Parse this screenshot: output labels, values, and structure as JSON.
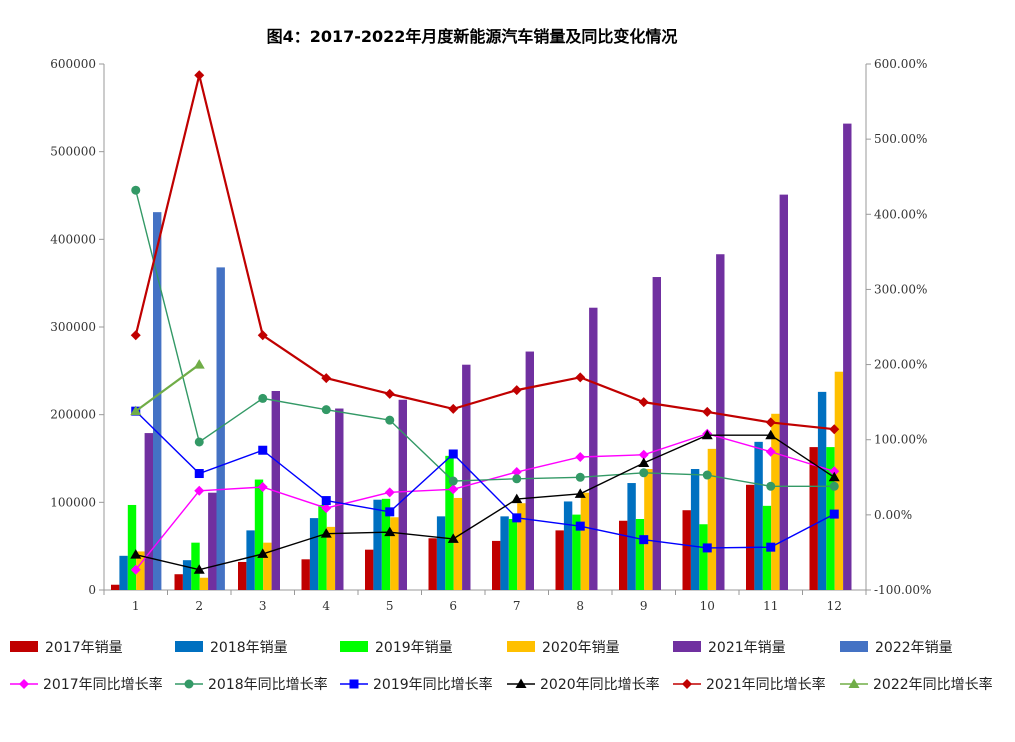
{
  "chart_data": {
    "type": "bar+line",
    "title": "图4：2017-2022年月度新能源汽车销量及同比变化情况",
    "categories": [
      "1",
      "2",
      "3",
      "4",
      "5",
      "6",
      "7",
      "8",
      "9",
      "10",
      "11",
      "12"
    ],
    "y_left": {
      "range": [
        0,
        600000
      ],
      "ticks": [
        "0",
        "100000",
        "200000",
        "300000",
        "400000",
        "500000",
        "600000"
      ]
    },
    "y_right": {
      "range": [
        -100,
        600
      ],
      "ticks": [
        "-100.00%",
        "0.00%",
        "100.00%",
        "200.00%",
        "300.00%",
        "400.00%",
        "500.00%",
        "600.00%"
      ]
    },
    "grid": false,
    "legend_position": "bottom",
    "bar_series": [
      {
        "name": "2017年销量",
        "color": "#C00000",
        "values": [
          6000,
          18000,
          32000,
          35000,
          46000,
          59000,
          56000,
          68000,
          79000,
          91000,
          120000,
          163000
        ]
      },
      {
        "name": "2018年销量",
        "color": "#0070C0",
        "values": [
          39000,
          34000,
          68000,
          82000,
          103000,
          84000,
          84000,
          101000,
          122000,
          138000,
          169000,
          226000
        ]
      },
      {
        "name": "2019年销量",
        "color": "#00FF00",
        "values": [
          97000,
          54000,
          126000,
          97000,
          104000,
          153000,
          81000,
          86000,
          81000,
          75000,
          96000,
          163000
        ]
      },
      {
        "name": "2020年销量",
        "color": "#FFC000",
        "values": [
          44000,
          14000,
          54000,
          72000,
          83000,
          105000,
          99000,
          111000,
          138000,
          161000,
          201000,
          249000
        ]
      },
      {
        "name": "2021年销量",
        "color": "#7030A0",
        "values": [
          179000,
          111000,
          227000,
          207000,
          217000,
          257000,
          272000,
          322000,
          357000,
          383000,
          451000,
          532000
        ]
      },
      {
        "name": "2022年销量",
        "color": "#4472C4",
        "values": [
          431000,
          368000,
          null,
          null,
          null,
          null,
          null,
          null,
          null,
          null,
          null,
          null
        ]
      }
    ],
    "line_series": [
      {
        "name": "2017年同比增长率",
        "color": "#FF00FF",
        "marker": "diamond",
        "values": [
          -73,
          32,
          37,
          9,
          30,
          34,
          57,
          77,
          80,
          108,
          84,
          58
        ]
      },
      {
        "name": "2018年同比增长率",
        "color": "#339966",
        "marker": "circle",
        "values": [
          432,
          97,
          155,
          140,
          126,
          45,
          48,
          50,
          56,
          53,
          38,
          38
        ]
      },
      {
        "name": "2019年同比增长率",
        "color": "#0000FF",
        "marker": "square",
        "values": [
          138,
          55,
          86,
          19,
          4,
          81,
          -4,
          -15,
          -33,
          -44,
          -43,
          1
        ]
      },
      {
        "name": "2020年同比增长率",
        "color": "#000000",
        "marker": "triangle",
        "values": [
          -53,
          -73,
          -52,
          -25,
          -23,
          -32,
          21,
          28,
          69,
          106,
          106,
          50
        ]
      },
      {
        "name": "2021年同比增长率",
        "color": "#C00000",
        "marker": "diamond",
        "values": [
          239,
          585,
          239,
          182,
          161,
          141,
          166,
          183,
          150,
          137,
          123,
          114
        ]
      },
      {
        "name": "2022年同比增长率",
        "color": "#70AD47",
        "marker": "triangle",
        "values": [
          138,
          200,
          null,
          null,
          null,
          null,
          null,
          null,
          null,
          null,
          null,
          null
        ]
      }
    ]
  }
}
